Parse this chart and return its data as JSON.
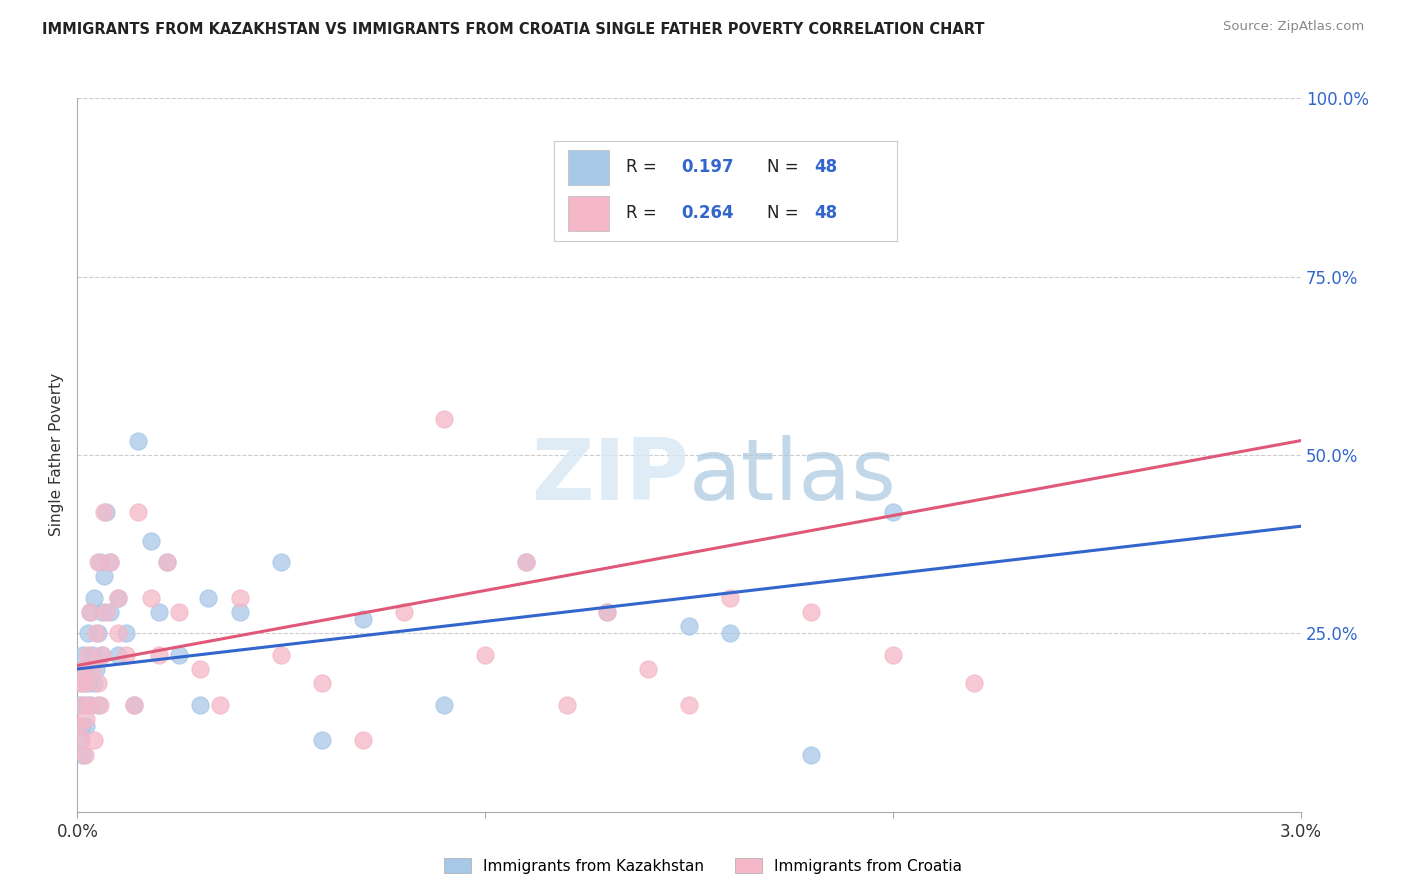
{
  "title": "IMMIGRANTS FROM KAZAKHSTAN VS IMMIGRANTS FROM CROATIA SINGLE FATHER POVERTY CORRELATION CHART",
  "source": "Source: ZipAtlas.com",
  "ylabel": "Single Father Poverty",
  "xlim": [
    0.0,
    0.03
  ],
  "ylim": [
    0.0,
    1.0
  ],
  "y_ticks": [
    0.0,
    0.25,
    0.5,
    0.75,
    1.0
  ],
  "y_tick_labels_right": [
    "",
    "25.0%",
    "50.0%",
    "75.0%",
    "100.0%"
  ],
  "kazakhstan_color": "#a8c8e8",
  "croatia_color": "#f4b8c8",
  "kazakhstan_line_color": "#3366cc",
  "croatia_line_color": "#e05878",
  "R_kazakhstan": 0.197,
  "N_kazakhstan": 48,
  "R_croatia": 0.264,
  "N_croatia": 48,
  "legend_label_kazakhstan": "Immigrants from Kazakhstan",
  "legend_label_croatia": "Immigrants from Croatia",
  "background_color": "#ffffff",
  "watermark": "ZIPatlas",
  "kaz_line_y0": 0.2,
  "kaz_line_y1": 0.4,
  "cro_line_y0": 0.205,
  "cro_line_y1": 0.52,
  "kazakhstan_x": [
    5e-05,
    8e-05,
    0.0001,
    0.00012,
    0.00015,
    0.00015,
    0.0002,
    0.0002,
    0.00022,
    0.00025,
    0.00025,
    0.0003,
    0.0003,
    0.00035,
    0.0004,
    0.0004,
    0.00045,
    0.0005,
    0.0005,
    0.00055,
    0.0006,
    0.0006,
    0.00065,
    0.0007,
    0.0008,
    0.0008,
    0.001,
    0.001,
    0.0012,
    0.0014,
    0.0015,
    0.0018,
    0.002,
    0.0022,
    0.0025,
    0.003,
    0.0032,
    0.004,
    0.005,
    0.006,
    0.007,
    0.009,
    0.011,
    0.013,
    0.015,
    0.016,
    0.018,
    0.02
  ],
  "kazakhstan_y": [
    0.15,
    0.1,
    0.18,
    0.12,
    0.08,
    0.22,
    0.15,
    0.2,
    0.12,
    0.18,
    0.25,
    0.15,
    0.28,
    0.22,
    0.18,
    0.3,
    0.2,
    0.15,
    0.25,
    0.35,
    0.22,
    0.28,
    0.33,
    0.42,
    0.28,
    0.35,
    0.22,
    0.3,
    0.25,
    0.15,
    0.52,
    0.38,
    0.28,
    0.35,
    0.22,
    0.15,
    0.3,
    0.28,
    0.35,
    0.1,
    0.27,
    0.15,
    0.35,
    0.28,
    0.26,
    0.25,
    0.08,
    0.42
  ],
  "croatia_x": [
    5e-05,
    8e-05,
    0.0001,
    0.00012,
    0.00015,
    0.00018,
    0.0002,
    0.00022,
    0.00025,
    0.0003,
    0.0003,
    0.00035,
    0.0004,
    0.00045,
    0.0005,
    0.0005,
    0.00055,
    0.0006,
    0.00065,
    0.0007,
    0.0008,
    0.001,
    0.001,
    0.0012,
    0.0014,
    0.0015,
    0.0018,
    0.002,
    0.0022,
    0.0025,
    0.003,
    0.0035,
    0.004,
    0.005,
    0.006,
    0.007,
    0.008,
    0.009,
    0.01,
    0.011,
    0.012,
    0.013,
    0.014,
    0.015,
    0.016,
    0.018,
    0.02,
    0.022
  ],
  "croatia_y": [
    0.12,
    0.18,
    0.1,
    0.15,
    0.2,
    0.08,
    0.18,
    0.13,
    0.22,
    0.15,
    0.28,
    0.2,
    0.1,
    0.25,
    0.18,
    0.35,
    0.15,
    0.22,
    0.42,
    0.28,
    0.35,
    0.25,
    0.3,
    0.22,
    0.15,
    0.42,
    0.3,
    0.22,
    0.35,
    0.28,
    0.2,
    0.15,
    0.3,
    0.22,
    0.18,
    0.1,
    0.28,
    0.55,
    0.22,
    0.35,
    0.15,
    0.28,
    0.2,
    0.15,
    0.3,
    0.28,
    0.22,
    0.18
  ]
}
